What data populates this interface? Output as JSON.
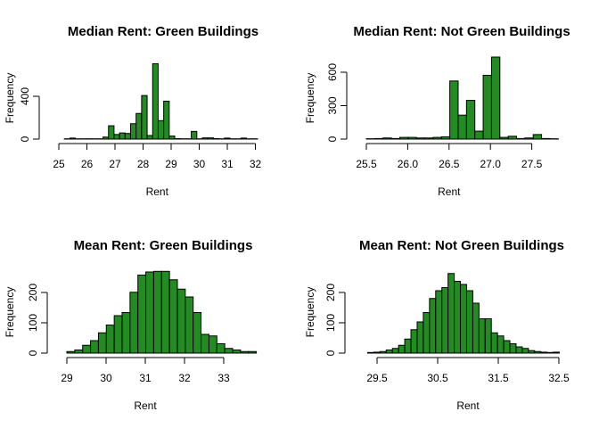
{
  "chart_data": [
    {
      "type": "bar",
      "title": "Median Rent: Green Buildings",
      "xlabel": "Rent",
      "ylabel": "Frequency",
      "bar_color": "#228B22",
      "xlim": [
        25,
        32.3
      ],
      "ylim": [
        0,
        800
      ],
      "x_ticks": [
        "25",
        "26",
        "27",
        "28",
        "29",
        "30",
        "31",
        "32"
      ],
      "y_ticks": [
        "0",
        "400"
      ],
      "bin_width": 0.2,
      "bins_start": [
        25.2,
        25.4,
        25.6,
        25.8,
        26.0,
        26.2,
        26.4,
        26.6,
        26.8,
        27.0,
        27.2,
        27.4,
        27.6,
        27.8,
        28.0,
        28.2,
        28.4,
        28.6,
        28.8,
        29.0,
        29.2,
        29.4,
        29.6,
        29.8,
        30.0,
        30.2,
        30.4,
        30.6,
        30.8,
        31.0,
        31.2,
        31.4,
        31.6,
        31.8,
        32.0
      ],
      "values": [
        3,
        10,
        3,
        3,
        3,
        3,
        3,
        20,
        130,
        45,
        60,
        55,
        150,
        250,
        425,
        35,
        735,
        180,
        370,
        30,
        5,
        3,
        3,
        75,
        3,
        12,
        12,
        5,
        3,
        10,
        3,
        3,
        10,
        3,
        3
      ]
    },
    {
      "type": "bar",
      "title": "Median Rent: Not Green Buildings",
      "xlabel": "Rent",
      "ylabel": "Frequency",
      "bar_color": "#228B22",
      "xlim": [
        25.5,
        27.85
      ],
      "ylim": [
        0,
        720
      ],
      "x_ticks": [
        "25.5",
        "26.0",
        "26.5",
        "27.0",
        "27.5"
      ],
      "y_ticks": [
        "0",
        "300",
        "600"
      ],
      "bin_width": 0.1,
      "bins_start": [
        25.5,
        25.6,
        25.7,
        25.8,
        25.9,
        26.0,
        26.1,
        26.2,
        26.3,
        26.4,
        26.5,
        26.6,
        26.7,
        26.8,
        26.9,
        27.0,
        27.1,
        27.2,
        27.3,
        27.4,
        27.5,
        27.6,
        27.7
      ],
      "values": [
        3,
        5,
        10,
        5,
        15,
        15,
        10,
        10,
        15,
        20,
        510,
        210,
        340,
        70,
        560,
        720,
        15,
        25,
        5,
        10,
        40,
        5,
        3
      ]
    },
    {
      "type": "bar",
      "title": "Mean Rent: Green Buildings",
      "xlabel": "Rent",
      "ylabel": "Frequency",
      "bar_color": "#228B22",
      "xlim": [
        29,
        33.9
      ],
      "ylim": [
        0,
        260
      ],
      "x_ticks": [
        "29",
        "30",
        "31",
        "32",
        "33"
      ],
      "y_ticks": [
        "0",
        "100",
        "200"
      ],
      "bin_width": 0.2,
      "bins_start": [
        29.0,
        29.2,
        29.4,
        29.6,
        29.8,
        30.0,
        30.2,
        30.4,
        30.6,
        30.8,
        31.0,
        31.2,
        31.4,
        31.6,
        31.8,
        32.0,
        32.2,
        32.4,
        32.6,
        32.8,
        33.0,
        33.2,
        33.4,
        33.6
      ],
      "values": [
        5,
        10,
        25,
        40,
        65,
        90,
        120,
        130,
        195,
        250,
        260,
        262,
        262,
        235,
        205,
        180,
        130,
        60,
        55,
        30,
        15,
        10,
        5,
        5
      ]
    },
    {
      "type": "bar",
      "title": "Mean Rent: Not Green Buildings",
      "xlabel": "Rent",
      "ylabel": "Frequency",
      "bar_color": "#228B22",
      "xlim": [
        29.35,
        32.55
      ],
      "ylim": [
        0,
        260
      ],
      "x_ticks": [
        "29.5",
        "30.5",
        "31.5",
        "32.5"
      ],
      "y_ticks": [
        "0",
        "100",
        "200"
      ],
      "bin_width": 0.1,
      "bins_start": [
        29.4,
        29.5,
        29.6,
        29.7,
        29.8,
        29.9,
        30.0,
        30.1,
        30.2,
        30.3,
        30.4,
        30.5,
        30.6,
        30.7,
        30.8,
        30.9,
        31.0,
        31.1,
        31.2,
        31.3,
        31.4,
        31.5,
        31.6,
        31.7,
        31.8,
        31.9,
        32.0,
        32.1,
        32.2,
        32.3,
        32.4
      ],
      "values": [
        2,
        3,
        5,
        10,
        15,
        25,
        45,
        75,
        100,
        130,
        175,
        200,
        210,
        255,
        230,
        220,
        200,
        160,
        110,
        110,
        65,
        55,
        40,
        30,
        20,
        15,
        8,
        5,
        3,
        2,
        3
      ]
    }
  ]
}
